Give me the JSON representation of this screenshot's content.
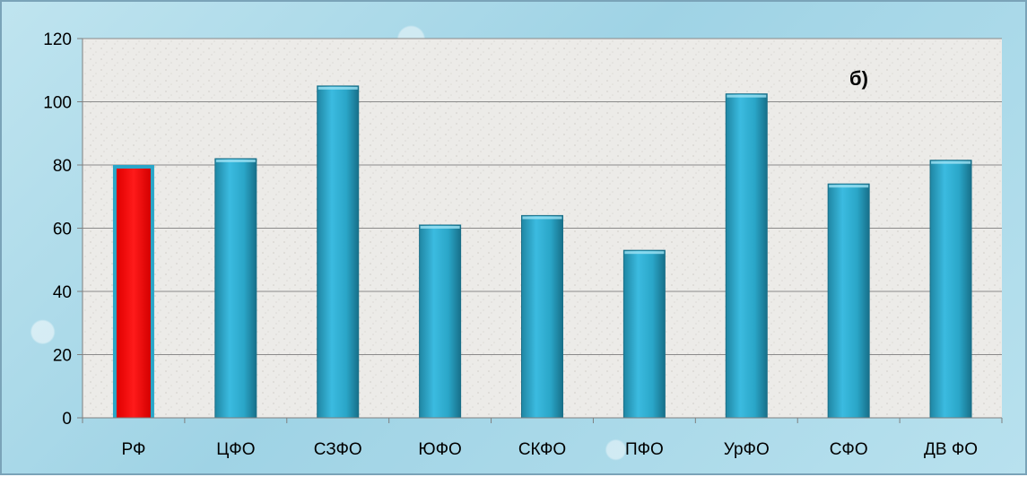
{
  "chart_data": {
    "type": "bar",
    "categories": [
      "РФ",
      "ЦФО",
      "СЗФО",
      "ЮФО",
      "СКФО",
      "ПФО",
      "УрФО",
      "СФО",
      "ДВ ФО"
    ],
    "values": [
      80,
      82,
      105,
      61,
      64,
      53,
      102.5,
      74,
      81.5
    ],
    "yticks": [
      "0",
      "20",
      "40",
      "60",
      "80",
      "100",
      "120"
    ],
    "ylim": [
      0,
      120
    ],
    "annotation": "б)",
    "grid": "horizontal",
    "colors": {
      "highlight": "#ff0000",
      "bar": "#2aa6c8",
      "bar_dark": "#1d7f9c",
      "plot_bg": "#ecebe8",
      "grid": "#8a8a8a"
    },
    "highlight_index": 0
  }
}
